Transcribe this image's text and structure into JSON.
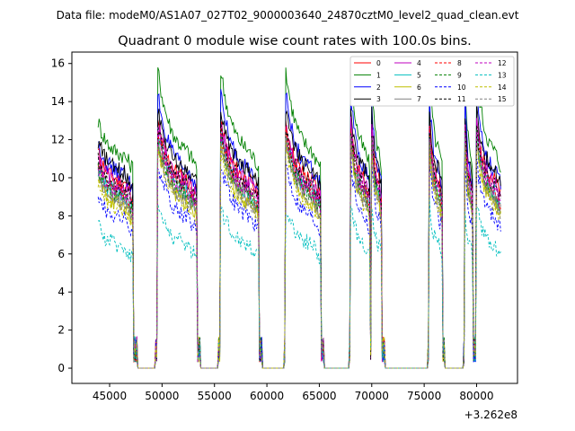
{
  "chart_data": {
    "type": "line",
    "suptitle": "Data file: modeM0/AS1A07_027T02_9000003640_24870cztM0_level2_quad_clean.evt",
    "title": "Quadrant 0 module wise count rates with 100.0s bins.",
    "xlabel": "",
    "ylabel": "",
    "x_offset_label": "+3.262e8",
    "xlim": [
      41400,
      83900
    ],
    "ylim": [
      -0.8,
      16.6
    ],
    "x_ticks": [
      45000,
      50000,
      55000,
      60000,
      65000,
      70000,
      75000,
      80000
    ],
    "x_tick_labels": [
      "45000",
      "50000",
      "55000",
      "60000",
      "65000",
      "70000",
      "75000",
      "80000"
    ],
    "y_ticks": [
      0,
      2,
      4,
      6,
      8,
      10,
      12,
      14,
      16
    ],
    "y_tick_labels": [
      "0",
      "2",
      "4",
      "6",
      "8",
      "10",
      "12",
      "14",
      "16"
    ],
    "grid": false,
    "legend_location": "upper right",
    "legend_columns": 4,
    "segments": [
      {
        "start": 43900,
        "end": 47200
      },
      {
        "start": 49600,
        "end": 53300
      },
      {
        "start": 55600,
        "end": 59200
      },
      {
        "start": 61800,
        "end": 65100
      },
      {
        "start": 68000,
        "end": 69800
      },
      {
        "start": 70000,
        "end": 70900
      },
      {
        "start": 75500,
        "end": 76700
      },
      {
        "start": 78900,
        "end": 79600
      },
      {
        "start": 80000,
        "end": 82300
      }
    ],
    "gaps": [
      {
        "start": 47700,
        "end": 49300
      },
      {
        "start": 53700,
        "end": 55300
      },
      {
        "start": 59600,
        "end": 61600
      },
      {
        "start": 65500,
        "end": 67800
      },
      {
        "start": 71300,
        "end": 75300
      },
      {
        "start": 77000,
        "end": 78700
      }
    ],
    "series": [
      {
        "name": "0",
        "color": "#ff0000",
        "dash": "solid",
        "level": 9.6,
        "peak": 12.8
      },
      {
        "name": "1",
        "color": "#008000",
        "dash": "solid",
        "level": 11.0,
        "peak": 15.7
      },
      {
        "name": "2",
        "color": "#0000ff",
        "dash": "solid",
        "level": 10.0,
        "peak": 14.4
      },
      {
        "name": "3",
        "color": "#000000",
        "dash": "solid",
        "level": 10.1,
        "peak": 13.5
      },
      {
        "name": "4",
        "color": "#bf00bf",
        "dash": "solid",
        "level": 9.4,
        "peak": 12.9
      },
      {
        "name": "5",
        "color": "#00bfbf",
        "dash": "solid",
        "level": 8.9,
        "peak": 12.3
      },
      {
        "name": "6",
        "color": "#bfbf00",
        "dash": "solid",
        "level": 8.4,
        "peak": 11.8
      },
      {
        "name": "7",
        "color": "#808080",
        "dash": "solid",
        "level": 8.6,
        "peak": 12.0
      },
      {
        "name": "8",
        "color": "#ff0000",
        "dash": "dashed",
        "level": 9.1,
        "peak": 12.5
      },
      {
        "name": "9",
        "color": "#008000",
        "dash": "dashed",
        "level": 8.8,
        "peak": 12.1
      },
      {
        "name": "10",
        "color": "#0000ff",
        "dash": "dashed",
        "level": 7.7,
        "peak": 10.8
      },
      {
        "name": "11",
        "color": "#000000",
        "dash": "dashed",
        "level": 9.3,
        "peak": 12.6
      },
      {
        "name": "12",
        "color": "#bf00bf",
        "dash": "dashed",
        "level": 9.0,
        "peak": 12.4
      },
      {
        "name": "13",
        "color": "#00bfbf",
        "dash": "dashed",
        "level": 6.3,
        "peak": 8.5
      },
      {
        "name": "14",
        "color": "#bfbf00",
        "dash": "dashed",
        "level": 8.2,
        "peak": 11.6
      },
      {
        "name": "15",
        "color": "#808080",
        "dash": "dashed",
        "level": 8.5,
        "peak": 11.9
      }
    ]
  }
}
